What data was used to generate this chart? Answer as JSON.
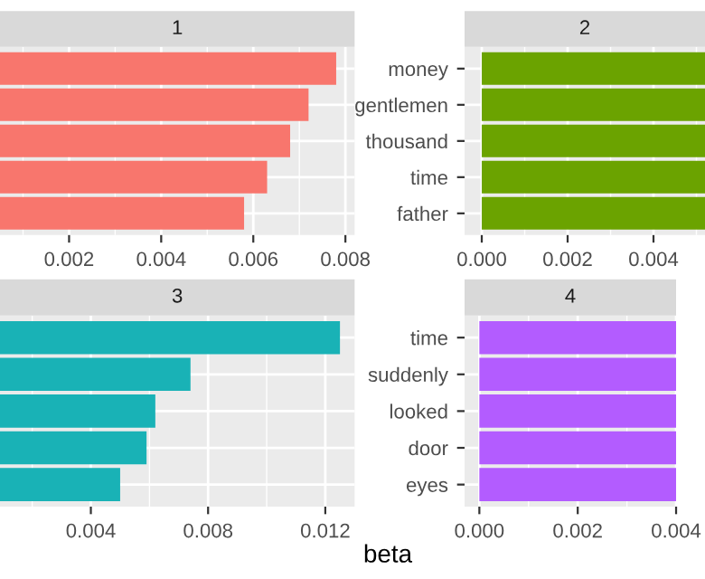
{
  "chart_data": [
    {
      "type": "bar",
      "orientation": "horizontal",
      "title": "1",
      "categories": [
        null,
        null,
        null,
        null,
        null
      ],
      "series": [
        {
          "color": "#f8766d",
          "values": [
            0.0078,
            0.0072,
            0.0068,
            0.0063,
            0.0058
          ]
        }
      ],
      "xlim": [
        0.0005,
        0.0082
      ],
      "xticks": [
        {
          "value": 0.001,
          "label": null
        },
        {
          "value": 0.002,
          "label": "0.002"
        },
        {
          "value": 0.003,
          "label": null
        },
        {
          "value": 0.004,
          "label": "0.004"
        },
        {
          "value": 0.005,
          "label": null
        },
        {
          "value": 0.006,
          "label": "0.006"
        },
        {
          "value": 0.007,
          "label": null
        },
        {
          "value": 0.008,
          "label": "0.008"
        }
      ],
      "grid": true,
      "tick_labels": "x"
    },
    {
      "type": "bar",
      "orientation": "horizontal",
      "title": "2",
      "categories": [
        "money",
        "gentlemen",
        "thousand",
        "time",
        "father"
      ],
      "series": [
        {
          "color": "#6ba300",
          "values": [
            0.0052,
            0.0052,
            0.0052,
            0.0052,
            0.0052
          ]
        }
      ],
      "xlim": [
        -0.0004,
        0.0052
      ],
      "xticks": [
        {
          "value": 0,
          "label": "0.000"
        },
        {
          "value": 0.001,
          "label": null
        },
        {
          "value": 0.002,
          "label": "0.002"
        },
        {
          "value": 0.003,
          "label": null
        },
        {
          "value": 0.004,
          "label": "0.004"
        },
        {
          "value": 0.005,
          "label": null
        }
      ],
      "grid": true
    },
    {
      "type": "bar",
      "orientation": "horizontal",
      "title": "3",
      "categories": [
        null,
        null,
        null,
        null,
        null
      ],
      "series": [
        {
          "color": "#19b2b6",
          "values": [
            0.0125,
            0.0074,
            0.0062,
            0.0059,
            0.005
          ]
        }
      ],
      "xlim": [
        0.0009,
        0.013
      ],
      "xticks": [
        {
          "value": 0.002,
          "label": null
        },
        {
          "value": 0.004,
          "label": "0.004"
        },
        {
          "value": 0.006,
          "label": null
        },
        {
          "value": 0.008,
          "label": "0.008"
        },
        {
          "value": 0.01,
          "label": null
        },
        {
          "value": 0.012,
          "label": "0.012"
        }
      ],
      "grid": true,
      "tick_labels": "x"
    },
    {
      "type": "bar",
      "orientation": "horizontal",
      "title": "4",
      "xlabel": "beta",
      "categories": [
        "time",
        "suddenly",
        "looked",
        "door",
        "eyes"
      ],
      "series": [
        {
          "color": "#b35cff",
          "values": [
            0.004,
            0.004,
            0.004,
            0.004,
            0.004
          ]
        }
      ],
      "xlim": [
        -0.0003,
        0.004
      ],
      "xticks": [
        {
          "value": 0,
          "label": "0.000"
        },
        {
          "value": 0.001,
          "label": null
        },
        {
          "value": 0.002,
          "label": "0.002"
        },
        {
          "value": 0.003,
          "label": null
        },
        {
          "value": 0.004,
          "label": "0.004"
        }
      ],
      "grid": true
    }
  ]
}
